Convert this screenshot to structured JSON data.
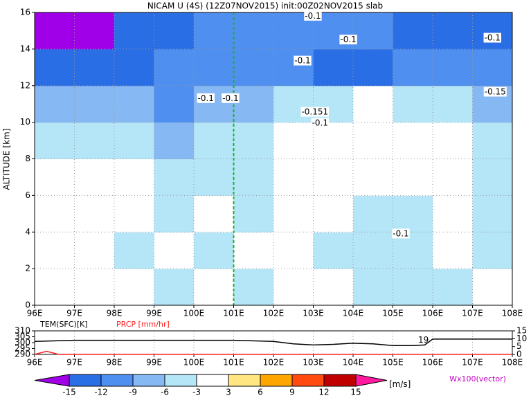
{
  "chart_data": [
    {
      "type": "heatmap",
      "title": "NICAM U (4S) (12Z07NOV2015) init:00Z02NOV2015 slab",
      "y_label": "ALTITUDE [km]",
      "xlim": [
        96,
        108
      ],
      "ylim": [
        0,
        16
      ],
      "xticks": [
        {
          "value": 96,
          "label": "96E"
        },
        {
          "value": 97,
          "label": "97E"
        },
        {
          "value": 98,
          "label": "98E"
        },
        {
          "value": 99,
          "label": "99E"
        },
        {
          "value": 100,
          "label": "100E"
        },
        {
          "value": 101,
          "label": "101E"
        },
        {
          "value": 102,
          "label": "102E"
        },
        {
          "value": 103,
          "label": "103E"
        },
        {
          "value": 104,
          "label": "104E"
        },
        {
          "value": 105,
          "label": "105E"
        },
        {
          "value": 106,
          "label": "106E"
        },
        {
          "value": 107,
          "label": "107E"
        },
        {
          "value": 108,
          "label": "108E"
        }
      ],
      "yticks": [
        0,
        2,
        4,
        6,
        8,
        10,
        12,
        14,
        16
      ],
      "grid": true,
      "marker_x": 101,
      "field": {
        "x": [
          96.5,
          97.5,
          98.5,
          99.5,
          100.5,
          101.5,
          102.5,
          103.5,
          104.5,
          105.5,
          106.5,
          107.5
        ],
        "y": [
          1,
          3,
          5,
          7,
          9,
          11,
          13,
          15
        ],
        "values": [
          [
            -3,
            -2,
            -3,
            -4,
            -3,
            -5,
            -3,
            -3,
            -4,
            -5,
            -4,
            -3
          ],
          [
            -2,
            -3,
            -4,
            -3,
            -4,
            -3,
            -3,
            -4,
            -4,
            -5,
            -3,
            -4
          ],
          [
            -1,
            -2,
            -3,
            -4,
            -3,
            -4,
            -2,
            -3,
            -4,
            -4,
            -3,
            -4
          ],
          [
            -2,
            -1,
            -2,
            -4,
            -5,
            -4,
            -2,
            0,
            -2,
            -1,
            -3,
            -4
          ],
          [
            -4,
            -5,
            -6,
            -7,
            -5,
            -4,
            -3,
            -2,
            -1,
            0,
            -2,
            -4
          ],
          [
            -9,
            -8,
            -9,
            -10,
            -8,
            -7,
            -6,
            -4,
            -3,
            -4,
            -6,
            -8
          ],
          [
            -14,
            -15,
            -13,
            -11,
            -12,
            -12,
            -11,
            -13,
            -14,
            -12,
            -10,
            -12
          ],
          [
            -16,
            -16,
            -15,
            -13,
            -12,
            -10,
            -10,
            -11,
            -12,
            -13,
            -13,
            -14
          ]
        ]
      },
      "annotations": [
        {
          "text": "-0.1",
          "x": 102.99,
          "y": 15.8
        },
        {
          "text": "-0.1",
          "x": 103.88,
          "y": 14.5
        },
        {
          "text": "-0.1",
          "x": 107.5,
          "y": 14.6
        },
        {
          "text": "-0.1",
          "x": 102.73,
          "y": 13.35
        },
        {
          "text": "-0.1",
          "x": 100.3,
          "y": 11.3
        },
        {
          "text": "-0.1",
          "x": 100.92,
          "y": 11.3
        },
        {
          "text": "-0.151",
          "x": 103.04,
          "y": 10.55
        },
        {
          "text": "-0.1",
          "x": 103.17,
          "y": 9.95
        },
        {
          "text": "-0.15",
          "x": 107.57,
          "y": 11.65
        },
        {
          "text": "-0.1",
          "x": 105.2,
          "y": 3.9
        }
      ],
      "colorbar": {
        "levels": [
          -15,
          -12,
          -9,
          -6,
          -3,
          3,
          6,
          9,
          12,
          15
        ],
        "colors": [
          "#a000e8",
          "#2a6ee6",
          "#4f8ff0",
          "#86b8f4",
          "#b4e6f8",
          "#ffffff",
          "#ffe680",
          "#ffa500",
          "#ff4a10",
          "#c00000",
          "#ff1aa0"
        ],
        "unit": "[m/s]"
      },
      "vector_label": "Wx100(vector)"
    },
    {
      "type": "line",
      "xlim": [
        96,
        108
      ],
      "ylim": [
        290,
        310
      ],
      "y2lim": [
        0,
        15
      ],
      "xticks": [
        {
          "value": 96,
          "label": "96E"
        },
        {
          "value": 97,
          "label": "97E"
        },
        {
          "value": 98,
          "label": "98E"
        },
        {
          "value": 99,
          "label": "99E"
        },
        {
          "value": 100,
          "label": "100E"
        },
        {
          "value": 101,
          "label": "101E"
        },
        {
          "value": 102,
          "label": "102E"
        },
        {
          "value": 103,
          "label": "103E"
        },
        {
          "value": 104,
          "label": "104E"
        },
        {
          "value": 105,
          "label": "105E"
        },
        {
          "value": 106,
          "label": "106E"
        },
        {
          "value": 107,
          "label": "107E"
        },
        {
          "value": 108,
          "label": "108E"
        }
      ],
      "yticks": [
        290,
        295,
        300,
        305,
        310
      ],
      "y2ticks": [
        0,
        5,
        10,
        15
      ],
      "series": [
        {
          "name": "TEM(SFC)[K]",
          "color": "#000000",
          "x": [
            96,
            97,
            98,
            99,
            100,
            101,
            102,
            102.5,
            103,
            103.5,
            104,
            104.5,
            105,
            105.5,
            105.8,
            106,
            107,
            108
          ],
          "values": [
            301,
            302,
            302,
            302,
            302,
            302,
            301,
            299,
            298,
            298.5,
            299.5,
            299,
            297.5,
            297.5,
            298,
            303,
            303,
            303
          ]
        },
        {
          "name": "PRCP [mm/hr]",
          "color": "#ff2020",
          "axis": "y2",
          "x": [
            96,
            96.3,
            96.6,
            97,
            108
          ],
          "values": [
            0,
            2,
            0,
            0,
            0
          ]
        }
      ],
      "annotations": [
        {
          "text": "19",
          "x": 105.9,
          "y": 302
        }
      ]
    }
  ]
}
